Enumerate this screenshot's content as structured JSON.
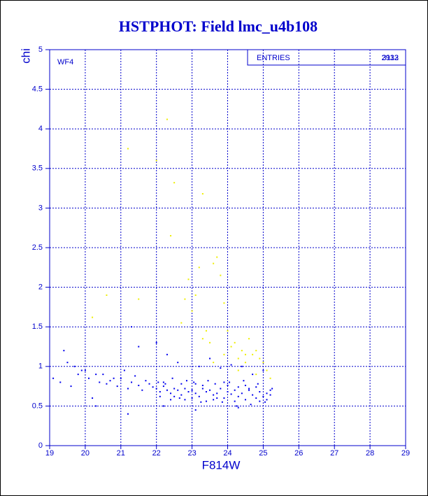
{
  "chart_data": {
    "type": "scatter",
    "title": "HSTPHOT: Field lmc_u4b108",
    "xlabel": "F814W",
    "ylabel": "chi",
    "annotation": "WF4",
    "stats": {
      "label": "ENTRIES",
      "values": [
        "2932",
        "3113"
      ]
    },
    "xlim": [
      19,
      29
    ],
    "xticks": [
      19,
      20,
      21,
      22,
      23,
      24,
      25,
      26,
      27,
      28,
      29
    ],
    "ylim": [
      0,
      5
    ],
    "yticks": [
      0,
      0.5,
      1,
      1.5,
      2,
      2.5,
      3,
      3.5,
      4,
      4.5,
      5
    ],
    "grid": true,
    "series": [
      {
        "color": "#0000ee",
        "x": [
          19.1,
          19.3,
          19.5,
          19.6,
          19.8,
          19.9,
          20.1,
          20.3,
          20.4,
          20.6,
          20.7,
          20.9,
          21.0,
          21.2,
          21.3,
          21.5,
          21.6,
          21.8,
          21.9,
          22.0,
          22.1,
          22.2,
          22.3,
          22.4,
          22.5,
          22.6,
          22.7,
          22.8,
          22.9,
          23.0,
          23.1,
          23.2,
          23.3,
          23.4,
          23.5,
          23.6,
          23.7,
          23.8,
          23.9,
          24.0,
          24.1,
          24.2,
          24.3,
          24.4,
          24.5,
          24.6,
          24.7,
          24.8,
          24.9,
          25.0,
          25.1,
          25.2,
          19.4,
          19.7,
          20.0,
          20.2,
          20.5,
          20.8,
          21.1,
          21.4,
          21.7,
          22.05,
          22.25,
          22.45,
          22.65,
          22.85,
          23.05,
          23.25,
          23.45,
          23.65,
          23.85,
          24.05,
          24.25,
          24.45,
          24.65,
          24.85,
          25.05,
          25.25,
          21.3,
          21.5,
          22.0,
          22.3,
          22.6,
          23.2,
          23.5,
          23.8,
          24.1,
          24.4,
          24.7,
          25.0,
          20.3,
          21.2,
          22.2,
          23.1,
          24.3,
          22.1,
          22.4,
          22.7,
          23.0,
          23.3,
          23.6,
          23.9,
          24.2,
          24.5,
          24.8,
          25.1,
          22.2,
          22.5,
          22.8,
          23.1,
          23.4,
          23.7,
          24.0,
          24.3,
          24.6,
          24.9,
          25.2
        ],
        "values": [
          0.85,
          0.8,
          1.05,
          0.75,
          0.9,
          0.95,
          0.85,
          0.9,
          0.8,
          0.78,
          0.82,
          0.75,
          0.85,
          0.72,
          0.8,
          0.76,
          0.7,
          0.78,
          0.74,
          0.72,
          0.68,
          0.75,
          0.7,
          0.66,
          0.72,
          0.7,
          0.64,
          0.72,
          0.68,
          0.7,
          0.66,
          0.62,
          0.72,
          0.68,
          0.7,
          0.64,
          0.66,
          0.72,
          0.6,
          0.68,
          0.65,
          0.7,
          0.62,
          0.66,
          0.58,
          0.7,
          0.64,
          0.6,
          0.68,
          0.62,
          0.66,
          0.64,
          1.2,
          1.0,
          0.95,
          0.6,
          0.9,
          0.85,
          0.95,
          0.88,
          0.82,
          0.8,
          0.78,
          0.85,
          0.6,
          0.82,
          0.8,
          0.55,
          0.82,
          0.78,
          0.55,
          0.8,
          0.5,
          0.82,
          0.52,
          0.78,
          0.55,
          0.72,
          1.5,
          1.25,
          1.3,
          1.15,
          1.05,
          1.0,
          1.1,
          0.98,
          1.02,
          1.0,
          0.9,
          0.95,
          0.5,
          0.4,
          0.5,
          0.45,
          0.48,
          0.62,
          0.58,
          0.78,
          0.6,
          0.76,
          0.58,
          0.8,
          0.56,
          0.76,
          0.74,
          0.58,
          0.8,
          0.62,
          0.58,
          0.78,
          0.56,
          0.6,
          0.76,
          0.74,
          0.72,
          0.56,
          0.7
        ]
      },
      {
        "color": "#eeee00",
        "x": [
          20.2,
          20.6,
          21.2,
          21.5,
          22.0,
          22.3,
          22.4,
          22.5,
          22.7,
          22.9,
          23.1,
          23.2,
          23.3,
          23.4,
          23.5,
          23.6,
          23.7,
          23.8,
          23.9,
          24.0,
          24.1,
          24.2,
          24.3,
          24.4,
          24.5,
          24.6,
          24.7,
          24.8,
          24.9,
          25.0,
          25.1,
          25.2,
          23.3,
          23.6,
          24.3,
          24.8,
          22.8,
          23.0,
          23.9,
          24.5
        ],
        "values": [
          1.62,
          1.9,
          3.75,
          1.85,
          3.6,
          4.12,
          2.65,
          3.32,
          1.55,
          2.1,
          1.9,
          2.25,
          3.18,
          1.45,
          1.3,
          2.3,
          2.38,
          2.15,
          1.8,
          1.45,
          1.25,
          1.3,
          1.1,
          1.2,
          1.05,
          1.35,
          1.15,
          1.2,
          1.1,
          1.05,
          0.95,
          0.85,
          1.35,
          1.05,
          0.95,
          0.9,
          1.85,
          1.7,
          1.15,
          1.15
        ]
      }
    ]
  }
}
